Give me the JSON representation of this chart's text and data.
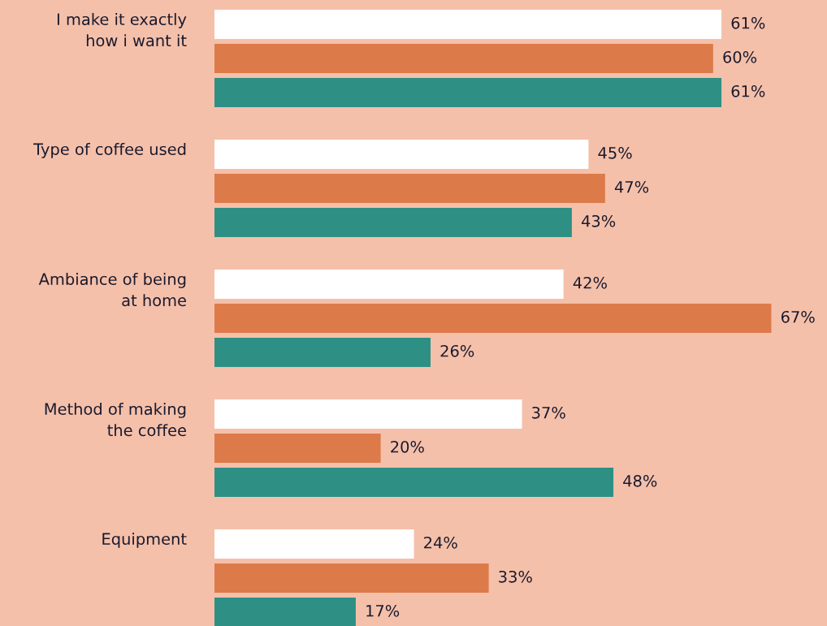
{
  "chart_data": {
    "type": "bar",
    "orientation": "horizontal",
    "categories": [
      "I make it exactly\nhow i want it",
      "Type of coffee used",
      "Ambiance of being\nat home",
      "Method of making\nthe coffee",
      "Equipment"
    ],
    "series": [
      {
        "color": "#ffffff",
        "values": [
          61,
          45,
          42,
          37,
          24
        ],
        "value_labels": [
          "61%",
          "45%",
          "42%",
          "37%",
          "24%"
        ]
      },
      {
        "color": "#dd7a4a",
        "values": [
          60,
          47,
          67,
          20,
          33
        ],
        "value_labels": [
          "60%",
          "47%",
          "67%",
          "20%",
          "33%"
        ]
      },
      {
        "color": "#2e9084",
        "values": [
          61,
          43,
          26,
          48,
          17
        ],
        "value_labels": [
          "61%",
          "43%",
          "26%",
          "48%",
          "17%"
        ]
      }
    ],
    "xlim": [
      0,
      73.7
    ]
  }
}
